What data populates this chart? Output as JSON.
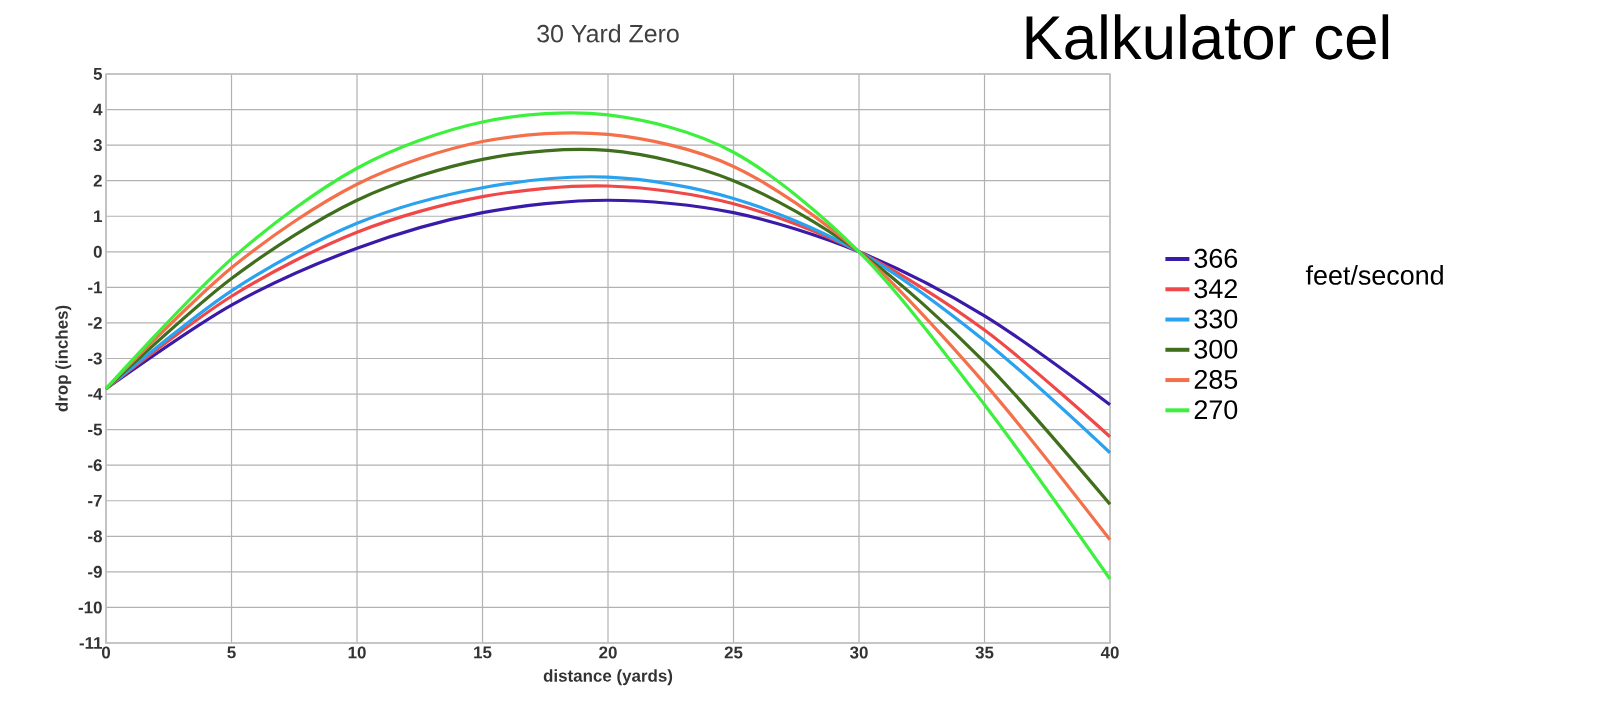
{
  "chart_data": {
    "type": "line",
    "title": "30 Yard Zero",
    "xlabel": "distance (yards)",
    "ylabel": "drop (inches)",
    "legend_title": "feet/second",
    "annotations": [
      "Kalkulator cel"
    ],
    "x": [
      0,
      5,
      10,
      15,
      20,
      25,
      30,
      35,
      40
    ],
    "series": [
      {
        "name": "366",
        "color": "#3a1aa8",
        "values": [
          -3.85,
          -1.5,
          0.1,
          1.1,
          1.45,
          1.1,
          0,
          -1.8,
          -4.3
        ]
      },
      {
        "name": "342",
        "color": "#f04848",
        "values": [
          -3.85,
          -1.25,
          0.55,
          1.55,
          1.85,
          1.35,
          0,
          -2.2,
          -5.2
        ]
      },
      {
        "name": "330",
        "color": "#29a3ef",
        "values": [
          -3.85,
          -1.1,
          0.8,
          1.8,
          2.1,
          1.5,
          0,
          -2.5,
          -5.65
        ]
      },
      {
        "name": "300",
        "color": "#3f6e1c",
        "values": [
          -3.85,
          -0.75,
          1.45,
          2.6,
          2.85,
          2.0,
          0,
          -3.1,
          -7.1
        ]
      },
      {
        "name": "285",
        "color": "#f4704a",
        "values": [
          -3.85,
          -0.45,
          1.9,
          3.1,
          3.3,
          2.4,
          0,
          -3.7,
          -8.1
        ]
      },
      {
        "name": "270",
        "color": "#3ef03e",
        "values": [
          -3.85,
          -0.2,
          2.35,
          3.65,
          3.85,
          2.8,
          0,
          -4.3,
          -9.2
        ]
      }
    ],
    "xlim": [
      0,
      40
    ],
    "ylim": [
      -11,
      5
    ],
    "xticks": [
      0,
      5,
      10,
      15,
      20,
      25,
      30,
      35,
      40
    ],
    "yticks": [
      -11,
      -10,
      -9,
      -8,
      -7,
      -6,
      -5,
      -4,
      -3,
      -2,
      -1,
      0,
      1,
      2,
      3,
      4,
      5
    ],
    "grid": true,
    "legend": "right",
    "marker": "none",
    "line_style": "solid"
  }
}
